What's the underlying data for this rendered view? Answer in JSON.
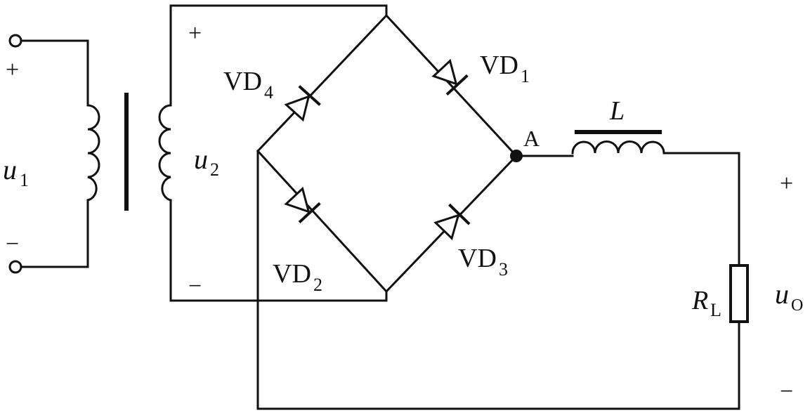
{
  "labels": {
    "u1": "u",
    "u1_sub": "1",
    "u2": "u",
    "u2_sub": "2",
    "uo": "u",
    "uo_sub": "O",
    "vd1": "VD",
    "vd1_sub": "1",
    "vd2": "VD",
    "vd2_sub": "2",
    "vd3": "VD",
    "vd3_sub": "3",
    "vd4": "VD",
    "vd4_sub": "4",
    "inductor": "L",
    "resistor": "R",
    "resistor_sub": "L",
    "node_a": "A"
  },
  "polarity": {
    "input_plus": "+",
    "input_minus": "−",
    "secondary_plus": "+",
    "secondary_minus": "−",
    "output_plus": "+",
    "output_minus": "−"
  }
}
